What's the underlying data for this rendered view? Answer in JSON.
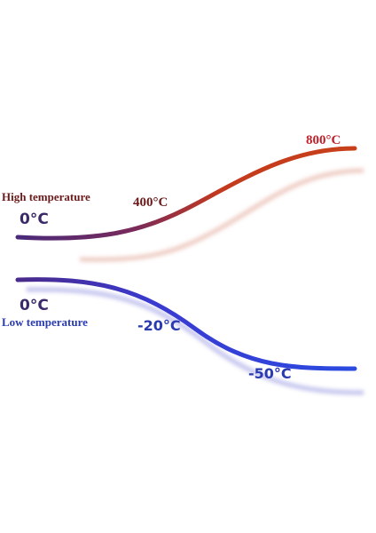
{
  "high": {
    "title": "High temperature",
    "labels": [
      "0°C",
      "400°C",
      "800°C"
    ]
  },
  "low": {
    "title": "Low temperature",
    "labels": [
      "0°C",
      "-20°C",
      "-50°C"
    ]
  }
}
